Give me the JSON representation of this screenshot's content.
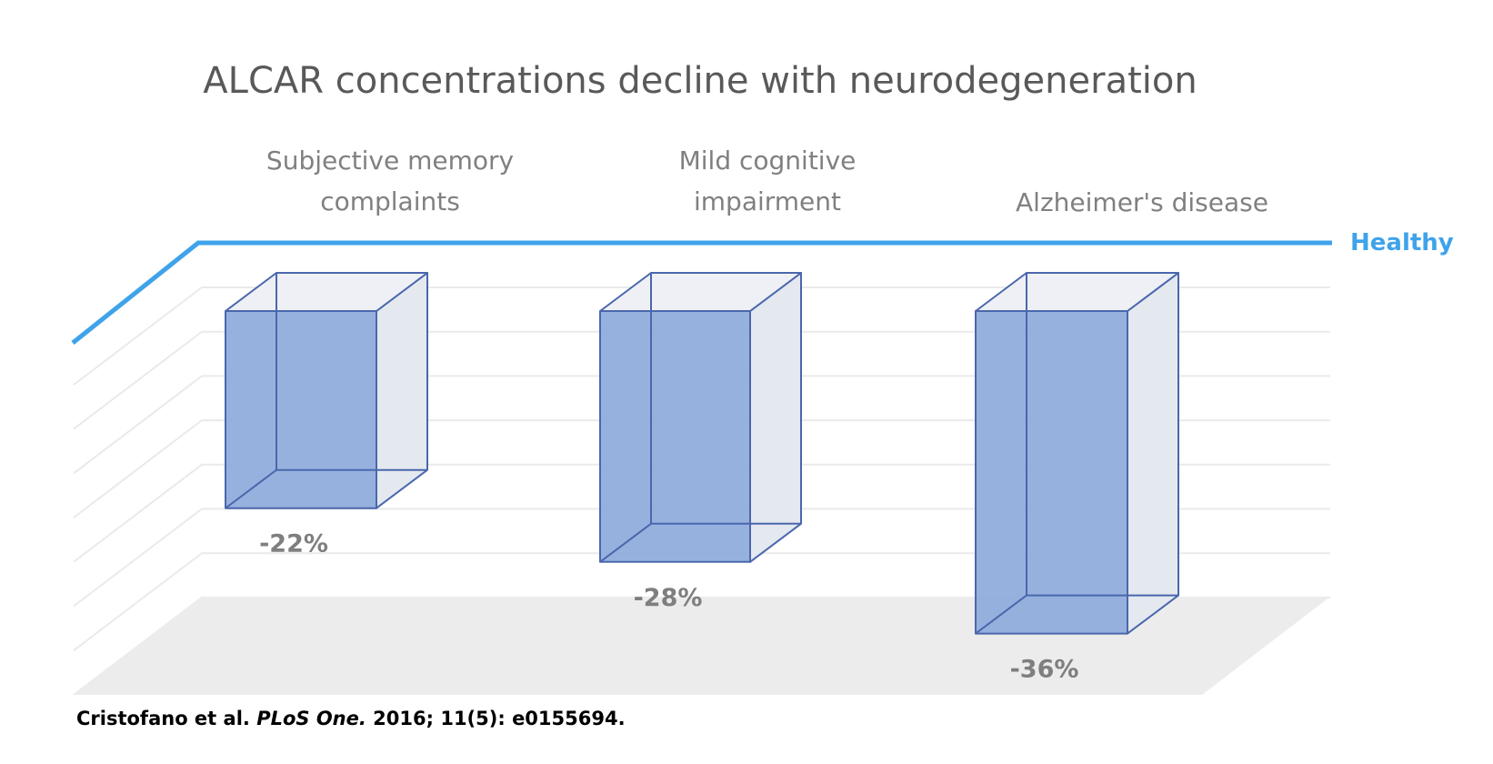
{
  "chart_data": {
    "type": "bar",
    "title": "ALCAR concentrations decline with neurodegeneration",
    "categories": [
      [
        "Subjective memory",
        "complaints"
      ],
      [
        "Mild cognitive",
        "impairment"
      ],
      [
        "Alzheimer's disease"
      ]
    ],
    "values": [
      -22,
      -28,
      -36
    ],
    "data_labels": [
      "-22%",
      "-28%",
      "-36%"
    ],
    "reference_line": {
      "label": "Healthy",
      "value": 0,
      "color": "#3fa3ea"
    },
    "bar_color": "#8eaadc",
    "ylim": [
      -40,
      0
    ],
    "grid": true,
    "style": "3d"
  },
  "citation": {
    "authors": "Cristofano et al.",
    "journal": "PLoS One.",
    "details": "2016; 11(5): e0155694."
  }
}
